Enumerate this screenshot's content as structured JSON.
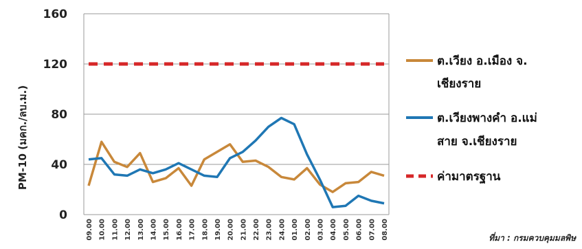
{
  "chart_data": {
    "type": "line",
    "ylabel": "PM-10 (มคก./ลบ.ม.)",
    "ylim": [
      0,
      160
    ],
    "yticks": [
      0,
      40,
      80,
      120,
      160
    ],
    "grid": true,
    "legend_position": "right",
    "categories": [
      "09.00",
      "10.00",
      "11.00",
      "12.00",
      "13.00",
      "14.00",
      "15.00",
      "16.00",
      "17.00",
      "18.00",
      "19.00",
      "20.00",
      "21.00",
      "22.00",
      "23.00",
      "24.00",
      "01.00",
      "02.00",
      "03.00",
      "04.00",
      "05.00",
      "06.00",
      "07.00",
      "08.00"
    ],
    "series": [
      {
        "name": "ต.เวียง อ.เมือง จ.เชียงราย",
        "color": "#c8883a",
        "style": "solid",
        "values": [
          23,
          58,
          42,
          38,
          49,
          26,
          29,
          37,
          23,
          44,
          50,
          56,
          42,
          43,
          38,
          30,
          28,
          37,
          24,
          18,
          25,
          26,
          34,
          31
        ]
      },
      {
        "name": "ต.เวียงพางคำ อ.แม่สาย จ.เชียงราย",
        "color": "#1f77b4",
        "style": "solid",
        "values": [
          44,
          45,
          32,
          31,
          36,
          33,
          36,
          41,
          36,
          31,
          30,
          45,
          50,
          59,
          70,
          77,
          72,
          48,
          28,
          6,
          7,
          15,
          11,
          9
        ]
      },
      {
        "name": "ค่ามาตรฐาน",
        "color": "#d62728",
        "style": "dashed",
        "values": [
          120,
          120,
          120,
          120,
          120,
          120,
          120,
          120,
          120,
          120,
          120,
          120,
          120,
          120,
          120,
          120,
          120,
          120,
          120,
          120,
          120,
          120,
          120,
          120
        ]
      }
    ]
  },
  "source_note": "ที่มา : กรมควบคุมมลพิษ"
}
